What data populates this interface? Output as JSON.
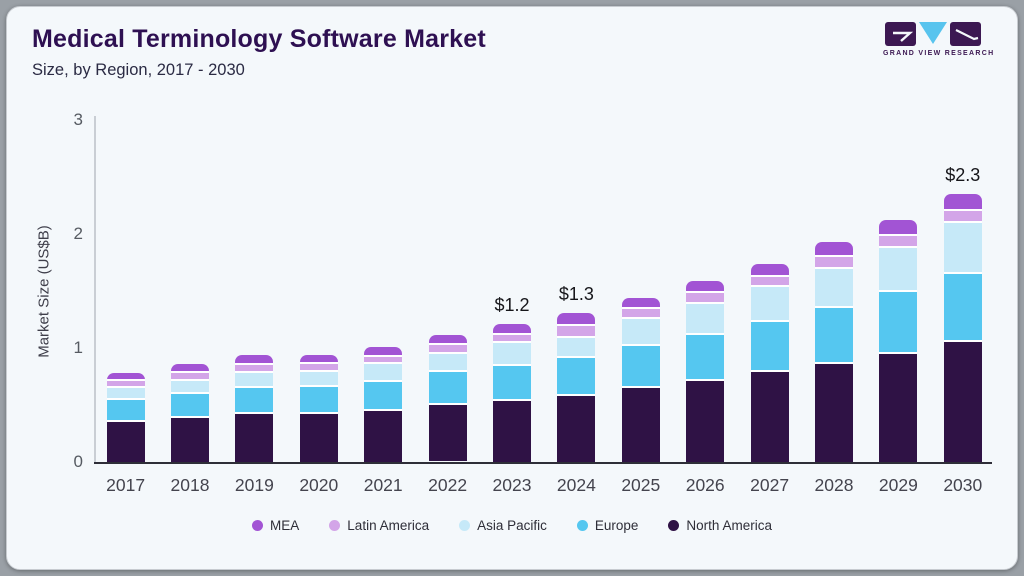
{
  "header": {
    "title": "Medical Terminology Software Market",
    "subtitle": "Size, by Region, 2017 - 2030"
  },
  "logo": {
    "name": "grand-view-research-logo",
    "text": "GRAND VIEW RESEARCH",
    "colors": {
      "dark": "#3c1852",
      "accent": "#58c4ee"
    }
  },
  "chart_data": {
    "type": "bar",
    "stacked": true,
    "title": "Medical Terminology Software Market Size, by Region, 2017 - 2030",
    "xlabel": "",
    "ylabel": "Market Size (US$B)",
    "ylim": [
      0,
      3
    ],
    "yticks": [
      0,
      1,
      2,
      3
    ],
    "grid": false,
    "legend_position": "bottom",
    "categories": [
      "2017",
      "2018",
      "2019",
      "2020",
      "2021",
      "2022",
      "2023",
      "2024",
      "2025",
      "2026",
      "2027",
      "2028",
      "2029",
      "2030"
    ],
    "series": [
      {
        "name": "North America",
        "color": "#2f1245",
        "values": [
          0.37,
          0.4,
          0.44,
          0.44,
          0.47,
          0.51,
          0.55,
          0.6,
          0.67,
          0.73,
          0.81,
          0.88,
          0.96,
          1.07
        ]
      },
      {
        "name": "Europe",
        "color": "#55c7f0",
        "values": [
          0.19,
          0.21,
          0.23,
          0.24,
          0.25,
          0.29,
          0.31,
          0.33,
          0.37,
          0.4,
          0.44,
          0.49,
          0.55,
          0.6
        ]
      },
      {
        "name": "Asia Pacific",
        "color": "#c6e9f8",
        "values": [
          0.11,
          0.12,
          0.13,
          0.13,
          0.16,
          0.16,
          0.2,
          0.18,
          0.23,
          0.28,
          0.31,
          0.34,
          0.38,
          0.44
        ]
      },
      {
        "name": "Latin America",
        "color": "#d3a5e8",
        "values": [
          0.06,
          0.07,
          0.07,
          0.07,
          0.06,
          0.08,
          0.07,
          0.1,
          0.09,
          0.09,
          0.08,
          0.11,
          0.11,
          0.11
        ]
      },
      {
        "name": "MEA",
        "color": "#a254d4",
        "values": [
          0.05,
          0.06,
          0.07,
          0.06,
          0.07,
          0.07,
          0.08,
          0.1,
          0.08,
          0.09,
          0.1,
          0.11,
          0.12,
          0.13
        ]
      }
    ],
    "totals": [
      0.78,
      0.86,
      0.94,
      0.94,
      1.01,
      1.11,
      1.21,
      1.31,
      1.44,
      1.59,
      1.74,
      1.93,
      2.12,
      2.35
    ],
    "bar_labels": {
      "2023": "$1.2",
      "2024": "$1.3",
      "2030": "$2.3"
    },
    "legend_order": [
      "MEA",
      "Latin America",
      "Asia Pacific",
      "Europe",
      "North America"
    ]
  }
}
